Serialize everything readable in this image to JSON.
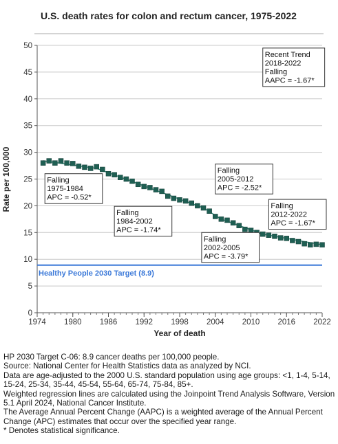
{
  "chart_data": {
    "type": "line",
    "title": "U.S. death rates for colon and rectum cancer, 1975-2022",
    "xlabel": "Year of death",
    "ylabel": "Rate per 100,000",
    "xlim": [
      1974,
      2022
    ],
    "ylim": [
      0,
      50
    ],
    "xticks": [
      "1974",
      "1980",
      "1986",
      "1992",
      "1998",
      "2004",
      "2010",
      "2016",
      "2022"
    ],
    "yticks": [
      "0",
      "5",
      "10",
      "15",
      "20",
      "25",
      "30",
      "35",
      "40",
      "45",
      "50"
    ],
    "grid": true,
    "x": [
      1975,
      1976,
      1977,
      1978,
      1979,
      1980,
      1981,
      1982,
      1983,
      1984,
      1985,
      1986,
      1987,
      1988,
      1989,
      1990,
      1991,
      1992,
      1993,
      1994,
      1995,
      1996,
      1997,
      1998,
      1999,
      2000,
      2001,
      2002,
      2003,
      2004,
      2005,
      2006,
      2007,
      2008,
      2009,
      2010,
      2011,
      2012,
      2013,
      2014,
      2015,
      2016,
      2017,
      2018,
      2019,
      2020,
      2021,
      2022
    ],
    "values": [
      28.0,
      28.4,
      28.0,
      28.4,
      28.0,
      27.9,
      27.4,
      27.2,
      27.0,
      27.3,
      26.8,
      26.0,
      25.8,
      25.3,
      25.0,
      24.6,
      24.0,
      23.6,
      23.4,
      23.0,
      22.7,
      21.8,
      21.4,
      21.1,
      20.9,
      20.5,
      20.0,
      19.6,
      19.0,
      18.0,
      17.5,
      17.3,
      16.8,
      16.3,
      15.6,
      15.4,
      15.0,
      14.7,
      14.5,
      14.3,
      14.0,
      13.9,
      13.5,
      13.3,
      12.9,
      12.7,
      12.8,
      12.7
    ],
    "marker_color": "#1f5f53",
    "trend_color": "#2e8b7a",
    "trend_segments": [
      {
        "x": [
          1975,
          1984
        ],
        "y": [
          28.4,
          27.0
        ]
      },
      {
        "x": [
          1984,
          2002
        ],
        "y": [
          27.0,
          19.6
        ]
      },
      {
        "x": [
          2002,
          2005
        ],
        "y": [
          19.6,
          17.5
        ]
      },
      {
        "x": [
          2005,
          2012
        ],
        "y": [
          17.5,
          14.7
        ]
      },
      {
        "x": [
          2012,
          2022
        ],
        "y": [
          14.7,
          12.7
        ]
      }
    ],
    "target": {
      "value": 8.9,
      "label": "Healthy People 2030 Target (8.9)",
      "color": "#3a78d8"
    },
    "annotations": [
      {
        "lines": [
          "Falling",
          "1975-1984",
          "APC = -0.52*"
        ],
        "x": 1975.3,
        "y": 26.0
      },
      {
        "lines": [
          "Falling",
          "1984-2002",
          "APC = -1.74*"
        ],
        "x": 1987.0,
        "y": 19.9
      },
      {
        "lines": [
          "Falling",
          "2002-2005",
          "APC = -3.79*"
        ],
        "x": 2001.7,
        "y": 15.0
      },
      {
        "lines": [
          "Falling",
          "2005-2012",
          "APC = -2.52*"
        ],
        "x": 2004.0,
        "y": 27.8
      },
      {
        "lines": [
          "Falling",
          "2012-2022",
          "APC = -1.67*"
        ],
        "x": 2013.0,
        "y": 21.2
      },
      {
        "lines": [
          "Recent Trend",
          "2018-2022",
          "Falling",
          "AAPC = -1.67*"
        ],
        "x": 2012.0,
        "y": 49.5
      }
    ]
  },
  "footnotes": [
    "HP 2030 Target C-06: 8.9 cancer deaths per 100,000 people.",
    "Source: National Center for Health Statistics data as analyzed by NCI.",
    "Data are age-adjusted to the 2000 U.S. standard population using age groups: <1, 1-4, 5-14, 15-24, 25-34, 35-44, 45-54, 55-64, 65-74, 75-84, 85+.",
    "Weighted regression lines are calculated using the Joinpoint Trend Analysis Software, Version 5.1 April 2024, National Cancer Institute.",
    "The Average Annual Percent Change (AAPC) is a weighted average of the Annual Percent Change (APC) estimates that occur over the specified year range.",
    "* Denotes statistical significance."
  ]
}
